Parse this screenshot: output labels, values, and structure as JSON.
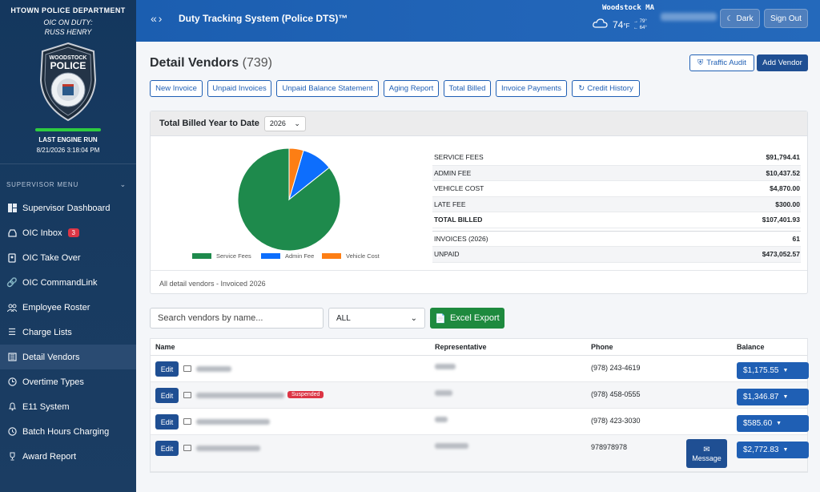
{
  "sidebar": {
    "department": "HTOWN POLICE DEPARTMENT",
    "oic_label": "OIC ON DUTY:",
    "oic_name": "RUSS HENRY",
    "badge": {
      "top_text": "WOODSTOCK",
      "main_text": "POLICE"
    },
    "engine_label": "LAST ENGINE RUN",
    "engine_time": "8/21/2026 3:18:04 PM",
    "menu_title": "SUPERVISOR MENU",
    "items": [
      {
        "label": "Supervisor Dashboard",
        "icon": "dashboard-icon"
      },
      {
        "label": "OIC Inbox",
        "icon": "inbox-icon",
        "badge": "3"
      },
      {
        "label": "OIC Take Over",
        "icon": "id-card-icon"
      },
      {
        "label": "OIC CommandLink",
        "icon": "link-icon"
      },
      {
        "label": "Employee Roster",
        "icon": "people-icon"
      },
      {
        "label": "Charge Lists",
        "icon": "list-icon"
      },
      {
        "label": "Detail Vendors",
        "icon": "building-icon",
        "active": true
      },
      {
        "label": "Overtime Types",
        "icon": "clock-icon"
      },
      {
        "label": "E11 System",
        "icon": "bell-icon"
      },
      {
        "label": "Batch Hours Charging",
        "icon": "history-icon"
      },
      {
        "label": "Award Report",
        "icon": "trophy-icon"
      }
    ]
  },
  "topbar": {
    "title": "Duty Tracking System (Police DTS)™",
    "weather": {
      "city": "Woodstock MA",
      "temp": "74",
      "unit": "°F",
      "high": "79°",
      "low": "64°"
    },
    "dark_label": "Dark",
    "signout_label": "Sign Out"
  },
  "page": {
    "title": "Detail Vendors",
    "count": "(739)",
    "traffic_audit_label": "Traffic Audit",
    "add_vendor_label": "Add Vendor",
    "action_buttons": [
      "New Invoice",
      "Unpaid Invoices",
      "Unpaid Balance Statement",
      "Aging Report",
      "Total Billed",
      "Invoice Payments",
      "Credit History"
    ]
  },
  "summary": {
    "heading": "Total Billed Year to Date",
    "year": "2026",
    "footer": "All detail vendors - Invoiced 2026",
    "fees": [
      {
        "label": "SERVICE FEES",
        "value": "$91,794.41"
      },
      {
        "label": "ADMIN FEE",
        "value": "$10,437.52"
      },
      {
        "label": "VEHICLE COST",
        "value": "$4,870.00"
      },
      {
        "label": "LATE FEE",
        "value": "$300.00"
      },
      {
        "label": "TOTAL BILLED",
        "value": "$107,401.93"
      }
    ],
    "stats": [
      {
        "label": "INVOICES (2026)",
        "value": "61"
      },
      {
        "label": "UNPAID",
        "value": "$473,052.57"
      }
    ]
  },
  "chart_data": {
    "type": "pie",
    "categories": [
      "Service Fees",
      "Admin Fee",
      "Vehicle Cost"
    ],
    "values": [
      91794.41,
      10437.52,
      4870.0
    ],
    "colors": [
      "#1e8a4c",
      "#0d6efd",
      "#fd7e14"
    ],
    "legend": "bottom"
  },
  "filters": {
    "search_placeholder": "Search vendors by name...",
    "select_value": "ALL",
    "excel_label": "Excel Export"
  },
  "table": {
    "headers": {
      "name": "Name",
      "rep": "Representative",
      "phone": "Phone",
      "balance": "Balance"
    },
    "edit_label": "Edit",
    "message_label": "Message",
    "rows": [
      {
        "phone": "(978) 243-4619",
        "balance": "$1,175.55",
        "suspended": ""
      },
      {
        "phone": "(978) 458-0555",
        "balance": "$1,346.87",
        "suspended": "Suspended"
      },
      {
        "phone": "(978) 423-3030",
        "balance": "$585.60",
        "suspended": ""
      },
      {
        "phone": "978978978",
        "balance": "$2,772.83",
        "suspended": ""
      }
    ]
  }
}
